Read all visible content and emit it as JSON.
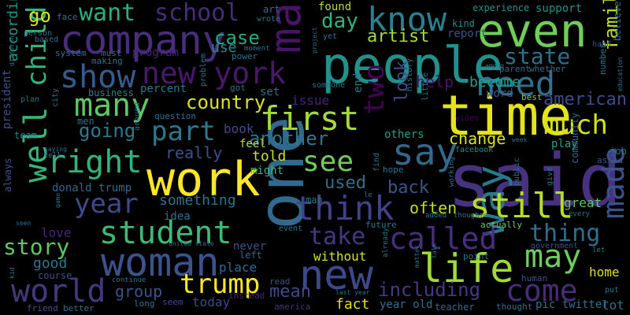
{
  "words": {
    "said": {
      "text": "said",
      "color": "#46327e"
    },
    "one": {
      "text": "one",
      "color": "#31688e"
    },
    "time": {
      "text": "time",
      "color": "#e5e419"
    },
    "people": {
      "text": "people",
      "color": "#21918c"
    },
    "work": {
      "text": "work",
      "color": "#fde725"
    },
    "company": {
      "text": "company",
      "color": "#472d7b"
    },
    "woman": {
      "text": "woman",
      "color": "#3b528b"
    },
    "even": {
      "text": "even",
      "color": "#6ece58"
    },
    "say": {
      "text": "say",
      "color": "#31688e"
    },
    "new": {
      "text": "new",
      "color": "#3e4989"
    },
    "make": {
      "text": "make",
      "color": "#481467"
    },
    "life": {
      "text": "life",
      "color": "#a0da39"
    },
    "way": {
      "text": "way",
      "color": "#2a788e"
    },
    "world": {
      "text": "world",
      "color": "#44397f"
    },
    "first": {
      "text": "first",
      "color": "#a5db36"
    },
    "many": {
      "text": "many",
      "color": "#5ec962"
    },
    "know": {
      "text": "know",
      "color": "#26828e"
    },
    "still": {
      "text": "still",
      "color": "#b5de2b"
    },
    "need": {
      "text": "need",
      "color": "#2c728e"
    },
    "think": {
      "text": "think",
      "color": "#404387"
    },
    "right": {
      "text": "right",
      "color": "#2fb47c"
    },
    "new_york": {
      "text": "new york",
      "color": "#48186a"
    },
    "show": {
      "text": "show",
      "color": "#365c8d"
    },
    "student": {
      "text": "student",
      "color": "#3bbb75"
    },
    "well": {
      "text": "well",
      "color": "#35b779"
    },
    "child": {
      "text": "child",
      "color": "#31b57b"
    },
    "may": {
      "text": "may",
      "color": "#6ccd5a"
    },
    "come": {
      "text": "come",
      "color": "#472c7a"
    },
    "made": {
      "text": "made",
      "color": "#3b528b"
    },
    "much": {
      "text": "much",
      "color": "#d5e21a"
    },
    "called": {
      "text": "called",
      "color": "#472f7d"
    },
    "take": {
      "text": "take",
      "color": "#453781"
    },
    "year": {
      "text": "year",
      "color": "#3e4a89"
    },
    "see": {
      "text": "see",
      "color": "#6ece58"
    },
    "trump": {
      "text": "trump",
      "color": "#fde725"
    },
    "part": {
      "text": "part",
      "color": "#2a788e"
    },
    "two": {
      "text": "two",
      "color": "#440154"
    },
    "story": {
      "text": "story",
      "color": "#5ec962"
    },
    "thing": {
      "text": "thing",
      "color": "#2e6e8e"
    },
    "school": {
      "text": "school",
      "color": "#472c7a"
    },
    "want": {
      "text": "want",
      "color": "#29af7f"
    },
    "state": {
      "text": "state",
      "color": "#2d708e"
    },
    "including": {
      "text": "including",
      "color": "#443983"
    },
    "family": {
      "text": "family",
      "color": "#c2df23"
    },
    "country": {
      "text": "country",
      "color": "#dde318"
    },
    "going": {
      "text": "going",
      "color": "#297b8e"
    },
    "another": {
      "text": "another",
      "color": "#2a788e"
    },
    "day": {
      "text": "day",
      "color": "#2fb47c"
    },
    "case": {
      "text": "case",
      "color": "#25ab82"
    },
    "american": {
      "text": "american",
      "color": "#3d4d8a"
    },
    "artist": {
      "text": "artist",
      "color": "#a2da37"
    },
    "help": {
      "text": "help",
      "color": "#471164"
    },
    "group": {
      "text": "group",
      "color": "#3b528b"
    },
    "mean": {
      "text": "mean",
      "color": "#3e4989"
    },
    "used": {
      "text": "used",
      "color": "#2e6f8e"
    },
    "back": {
      "text": "back",
      "color": "#3a548c"
    },
    "look": {
      "text": "look",
      "color": "#3e4a89"
    },
    "change": {
      "text": "change",
      "color": "#dce319"
    },
    "something": {
      "text": "something",
      "color": "#2b748e"
    },
    "often": {
      "text": "often",
      "color": "#bddf26"
    },
    "really": {
      "text": "really",
      "color": "#3b528b"
    },
    "home": {
      "text": "home",
      "color": "#dde318"
    },
    "go": {
      "text": "go",
      "color": "#d8e219"
    },
    "issue": {
      "text": "issue",
      "color": "#482576"
    },
    "become": {
      "text": "become",
      "color": "#1f9f88"
    },
    "book": {
      "text": "book",
      "color": "#3e4a89"
    },
    "according": {
      "text": "according",
      "color": "#1f968b"
    },
    "told": {
      "text": "told",
      "color": "#c8e020"
    },
    "use": {
      "text": "use",
      "color": "#21908d"
    },
    "good": {
      "text": "good",
      "color": "#2a788e"
    },
    "today": {
      "text": "today",
      "color": "#3e4989"
    },
    "fact": {
      "text": "fact",
      "color": "#dde318"
    },
    "without": {
      "text": "without",
      "color": "#d2e21b"
    },
    "feel": {
      "text": "feel",
      "color": "#bddf26"
    },
    "might": {
      "text": "might",
      "color": "#37b878"
    },
    "play": {
      "text": "play",
      "color": "#20a386"
    },
    "love": {
      "text": "love",
      "color": "#482576"
    },
    "place": {
      "text": "place",
      "color": "#31688e"
    },
    "great": {
      "text": "great",
      "color": "#5ec962"
    },
    "donald_trump": {
      "text": "donald trump",
      "color": "#31688e"
    },
    "idea": {
      "text": "idea",
      "color": "#2d708e"
    },
    "question": {
      "text": "question",
      "color": "#2c728e"
    },
    "end": {
      "text": "end",
      "color": "#2a788e"
    },
    "set": {
      "text": "set",
      "color": "#2c728e"
    },
    "percent": {
      "text": "percent",
      "color": "#2a788e"
    },
    "business": {
      "text": "business",
      "color": "#25848e"
    },
    "program": {
      "text": "program",
      "color": "#482475"
    },
    "report": {
      "text": "report",
      "color": "#3b528b"
    },
    "word": {
      "text": "word",
      "color": "#34618d"
    },
    "best": {
      "text": "best",
      "color": "#7ad151"
    },
    "video": {
      "text": "video",
      "color": "#440154"
    },
    "support": {
      "text": "support",
      "color": "#21918c"
    },
    "experience": {
      "text": "experience",
      "color": "#21918c"
    },
    "found": {
      "text": "found",
      "color": "#b5de2b"
    },
    "kind": {
      "text": "kind",
      "color": "#228c8d"
    },
    "others": {
      "text": "others",
      "color": "#1fa187"
    },
    "never": {
      "text": "never",
      "color": "#3b528b"
    },
    "left": {
      "text": "left",
      "color": "#31688e"
    },
    "course": {
      "text": "course",
      "color": "#3d4e8a"
    },
    "pic_twitter": {
      "text": "pic twitter",
      "color": "#2c728e"
    },
    "lot": {
      "text": "lot",
      "color": "#2e6e8e"
    },
    "year_old": {
      "text": "year old",
      "color": "#2d708e"
    },
    "teacher": {
      "text": "teacher",
      "color": "#31688e"
    },
    "america": {
      "text": "america",
      "color": "#46327e"
    },
    "actually": {
      "text": "actually",
      "color": "#6ccd5a"
    },
    "government": {
      "text": "government",
      "color": "#3b528b"
    },
    "facebook": {
      "text": "facebook",
      "color": "#20928c"
    },
    "always": {
      "text": "always",
      "color": "#3b528b"
    },
    "president": {
      "text": "president",
      "color": "#3b528b"
    },
    "men": {
      "text": "men",
      "color": "#2c728e"
    },
    "team": {
      "text": "team",
      "color": "#228d8d"
    },
    "man": {
      "text": "man",
      "color": "#2a768e"
    },
    "hope": {
      "text": "hope",
      "color": "#2c728e"
    },
    "future": {
      "text": "future",
      "color": "#2a788e"
    },
    "seem": {
      "text": "seem",
      "color": "#3e4a89"
    },
    "better": {
      "text": "better",
      "color": "#2c728e"
    },
    "friend": {
      "text": "friend",
      "color": "#3b528b"
    },
    "long": {
      "text": "long",
      "color": "#2a788e"
    },
    "instead": {
      "text": "instead",
      "color": "#482576"
    },
    "read": {
      "text": "read",
      "color": "#3b528b"
    },
    "event": {
      "text": "event",
      "color": "#2a788e"
    },
    "human": {
      "text": "human",
      "color": "#3b528b"
    },
    "thought": {
      "text": "thought",
      "color": "#2c728e"
    },
    "point": {
      "text": "point",
      "color": "#2c728e"
    },
    "community": {
      "text": "community",
      "color": "#2d708e"
    },
    "asked": {
      "text": "asked",
      "color": "#3b528b"
    },
    "job": {
      "text": "job",
      "color": "#2c728e"
    },
    "number": {
      "text": "number",
      "color": "#2c728e"
    },
    "believe": {
      "text": "believe",
      "color": "#2d708e"
    },
    "education": {
      "text": "education",
      "color": "#2c728e"
    },
    "hand": {
      "text": "hand",
      "color": "#3b528b"
    },
    "power": {
      "text": "power",
      "color": "#2c728e"
    },
    "moment": {
      "text": "moment",
      "color": "#2c728e"
    },
    "must": {
      "text": "must",
      "color": "#2c728e"
    },
    "making": {
      "text": "making",
      "color": "#2c728e"
    },
    "system": {
      "text": "system",
      "color": "#2c728e"
    },
    "based": {
      "text": "based",
      "color": "#2c728e"
    },
    "person": {
      "text": "person",
      "color": "#2c728e"
    },
    "face": {
      "text": "face",
      "color": "#2c728e"
    },
    "art": {
      "text": "art",
      "color": "#2c728e"
    },
    "wrote": {
      "text": "wrote",
      "color": "#2c728e"
    },
    "yet": {
      "text": "yet",
      "color": "#2c728e"
    },
    "among": {
      "text": "among",
      "color": "#2c728e"
    },
    "parent": {
      "text": "parent",
      "color": "#2c728e"
    },
    "whether": {
      "text": "whether",
      "color": "#2c728e"
    },
    "got": {
      "text": "got",
      "color": "#2c728e"
    },
    "problem": {
      "text": "problem",
      "color": "#2c728e"
    },
    "someone": {
      "text": "someone",
      "color": "#2c728e"
    },
    "different": {
      "text": "different",
      "color": "#2c728e"
    },
    "plan": {
      "text": "plan",
      "color": "#2c728e"
    },
    "city": {
      "text": "city",
      "color": "#2c728e"
    },
    "project": {
      "text": "project",
      "color": "#2c728e"
    },
    "history": {
      "text": "history",
      "color": "#2c728e"
    },
    "little": {
      "text": "little",
      "color": "#2c728e"
    },
    "saying": {
      "text": "saying",
      "color": "#2c728e"
    },
    "tell": {
      "text": "tell",
      "color": "#2c728e"
    },
    "around": {
      "text": "around",
      "color": "#2c728e"
    },
    "find": {
      "text": "find",
      "color": "#2c728e"
    },
    "working": {
      "text": "working",
      "color": "#2c728e"
    },
    "public": {
      "text": "public",
      "color": "#2c728e"
    },
    "give": {
      "text": "give",
      "color": "#2c728e"
    },
    "week": {
      "text": "week",
      "color": "#2c728e"
    },
    "came": {
      "text": "came",
      "color": "#2c728e"
    },
    "though": {
      "text": "though",
      "color": "#2c728e"
    },
    "added": {
      "text": "added",
      "color": "#2c728e"
    },
    "le": {
      "text": "le",
      "color": "#2c728e"
    },
    "game": {
      "text": "game",
      "color": "#2c728e"
    },
    "seen": {
      "text": "seen",
      "color": "#2c728e"
    },
    "kid": {
      "text": "kid",
      "color": "#2c728e"
    },
    "united_state": {
      "text": "united state",
      "color": "#2c728e"
    },
    "continue": {
      "text": "continue",
      "color": "#2c728e"
    },
    "already": {
      "text": "already",
      "color": "#2c728e"
    },
    "matter": {
      "text": "matter",
      "color": "#2c728e"
    },
    "talk": {
      "text": "talk",
      "color": "#2c728e"
    },
    "last_year": {
      "text": "last year",
      "color": "#2c728e"
    },
    "every": {
      "text": "every",
      "color": "#2c728e"
    },
    "let": {
      "text": "let",
      "color": "#2c728e"
    },
    "put": {
      "text": "put",
      "color": "#2c728e"
    }
  }
}
